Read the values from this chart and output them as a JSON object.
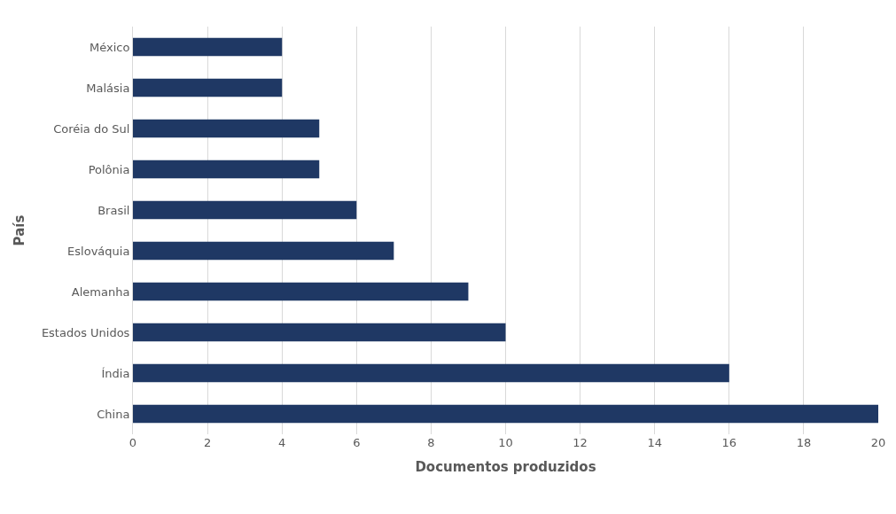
{
  "chart_data": {
    "type": "bar",
    "orientation": "horizontal",
    "xlabel": "Documentos produzidos",
    "ylabel": "País",
    "categories": [
      "México",
      "Malásia",
      "Coréia do Sul",
      "Polônia",
      "Brasil",
      "Eslováquia",
      "Alemanha",
      "Estados Unidos",
      "Índia",
      "China"
    ],
    "values": [
      4,
      4,
      5,
      5,
      6,
      7,
      9,
      10,
      16,
      20
    ],
    "color": "#1f3864",
    "xlim": [
      0,
      20
    ],
    "xticks": [
      0,
      2,
      4,
      6,
      8,
      10,
      12,
      14,
      16,
      18,
      20
    ],
    "grid": "x",
    "legend": false
  }
}
